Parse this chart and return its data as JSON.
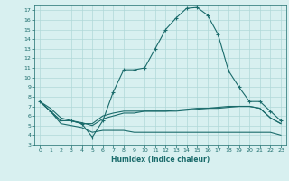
{
  "x": [
    0,
    1,
    2,
    3,
    4,
    5,
    6,
    7,
    8,
    9,
    10,
    11,
    12,
    13,
    14,
    15,
    16,
    17,
    18,
    19,
    20,
    21,
    22,
    23
  ],
  "line_main": [
    7.5,
    6.5,
    5.5,
    5.5,
    5.2,
    3.8,
    5.5,
    8.5,
    10.8,
    10.8,
    11.0,
    13.0,
    15.0,
    16.2,
    17.2,
    17.3,
    16.5,
    14.5,
    10.7,
    9.0,
    7.5,
    7.5,
    6.5,
    5.5
  ],
  "line_a": [
    7.5,
    6.5,
    5.5,
    5.5,
    5.2,
    5.2,
    6.0,
    6.3,
    6.5,
    6.5,
    6.5,
    6.5,
    6.5,
    6.5,
    6.6,
    6.7,
    6.8,
    6.8,
    6.9,
    7.0,
    7.0,
    6.8,
    5.8,
    5.2
  ],
  "line_b": [
    7.5,
    6.5,
    5.2,
    5.0,
    4.8,
    4.3,
    4.5,
    4.5,
    4.5,
    4.3,
    4.3,
    4.3,
    4.3,
    4.3,
    4.3,
    4.3,
    4.3,
    4.3,
    4.3,
    4.3,
    4.3,
    4.3,
    4.3,
    4.0
  ],
  "line_c": [
    7.5,
    6.8,
    5.8,
    5.5,
    5.3,
    5.0,
    5.7,
    6.0,
    6.3,
    6.3,
    6.5,
    6.5,
    6.5,
    6.6,
    6.7,
    6.8,
    6.8,
    6.9,
    7.0,
    7.0,
    7.0,
    6.8,
    5.8,
    5.2
  ],
  "color": "#1a6b6b",
  "bg_color": "#d8f0f0",
  "grid_color": "#b0d8d8",
  "xlabel": "Humidex (Indice chaleur)",
  "ylim": [
    3,
    17.5
  ],
  "xlim": [
    -0.5,
    23.5
  ],
  "yticks": [
    3,
    4,
    5,
    6,
    7,
    8,
    9,
    10,
    11,
    12,
    13,
    14,
    15,
    16,
    17
  ],
  "xticks": [
    0,
    1,
    2,
    3,
    4,
    5,
    6,
    7,
    8,
    9,
    10,
    11,
    12,
    13,
    14,
    15,
    16,
    17,
    18,
    19,
    20,
    21,
    22,
    23
  ],
  "figw": 3.2,
  "figh": 2.0,
  "dpi": 100
}
